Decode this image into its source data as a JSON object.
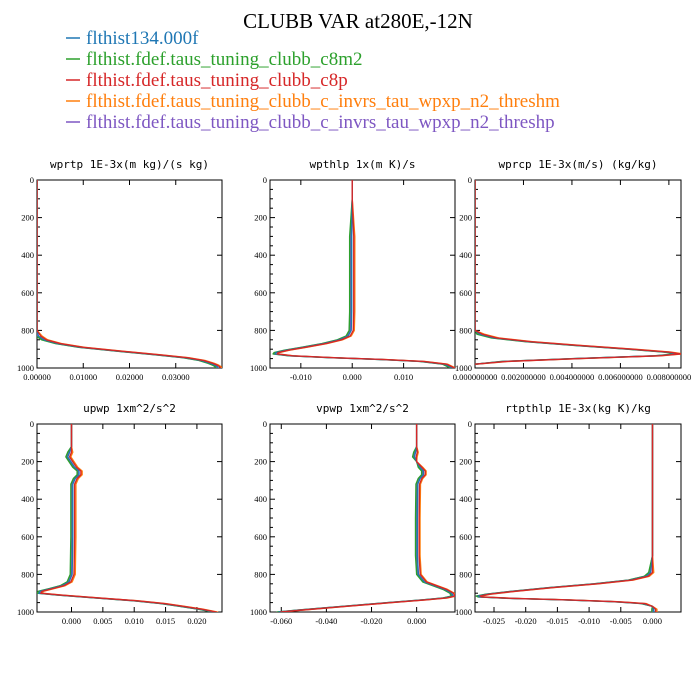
{
  "chart_data": {
    "type": "line",
    "title": "CLUBB VAR at280E,-12N",
    "series_names": [
      "flthist134.000f",
      "flthist.fdef.taus_tuning_clubb_c8m2",
      "flthist.fdef.taus_tuning_clubb_c8p",
      "flthist.fdef.taus_tuning_clubb_c_invrs_tau_wpxp_n2_threshm",
      "flthist.fdef.taus_tuning_clubb_c_invrs_tau_wpxp_n2_threshp"
    ],
    "series_colors": [
      "#1f77b4",
      "#2ca02c",
      "#d62728",
      "#ff7f0e",
      "#7e57c2"
    ],
    "legend_position": "top",
    "panels": [
      {
        "title": "wprtp  1E-3x(m kg)/(s kg)",
        "xlim": [
          0,
          0.04
        ],
        "ylim": [
          0,
          1000
        ],
        "y_inverted": true,
        "xticks": [
          0,
          0.01,
          0.02,
          0.03
        ],
        "xtick_labels": [
          "0.00000",
          "0.01000",
          "0.02000",
          "0.03000"
        ],
        "yticks": [
          0,
          200,
          400,
          600,
          800,
          1000
        ],
        "ytick_labels": [
          "0",
          "200",
          "400",
          "600",
          "800",
          "1000"
        ],
        "profile": {
          "y": [
            0,
            600,
            800,
            830,
            850,
            870,
            890,
            910,
            930,
            945,
            960,
            975,
            985,
            993,
            1000
          ],
          "x": [
            0,
            0,
            0,
            0.0003,
            0.0015,
            0.0045,
            0.0095,
            0.0175,
            0.026,
            0.032,
            0.0355,
            0.0375,
            0.0385,
            0.039,
            0.0392
          ]
        },
        "series_dx": [
          0,
          -0.0005,
          0.0005,
          0.0008,
          -0.0003
        ]
      },
      {
        "title": "wpthlp  1x(m K)/s",
        "xlim": [
          -0.016,
          0.02
        ],
        "ylim": [
          0,
          1000
        ],
        "y_inverted": true,
        "xticks": [
          -0.01,
          0,
          0.01
        ],
        "xtick_labels": [
          "-0.010",
          "0.000",
          "0.010"
        ],
        "yticks": [
          0,
          200,
          400,
          600,
          800,
          1000
        ],
        "ytick_labels": [
          "0",
          "200",
          "400",
          "600",
          "800",
          "1000"
        ],
        "profile": {
          "y": [
            0,
            100,
            300,
            500,
            700,
            800,
            830,
            850,
            870,
            890,
            905,
            918,
            925,
            935,
            945,
            955,
            965,
            980,
            1000
          ],
          "x": [
            0,
            0,
            -0.0001,
            -0.0001,
            -0.0001,
            -0.0002,
            -0.0008,
            -0.0025,
            -0.0055,
            -0.0095,
            -0.0128,
            -0.0148,
            -0.015,
            -0.012,
            -0.004,
            0.006,
            0.0135,
            0.018,
            0.0195
          ]
        },
        "series_dx": [
          0,
          -0.0004,
          0.0004,
          0.0006,
          -0.0002
        ]
      },
      {
        "title": "wprcp  1E-3x(m/s) (kg/kg)",
        "xlim": [
          0,
          0.0085
        ],
        "ylim": [
          0,
          1000
        ],
        "y_inverted": true,
        "xticks": [
          0,
          0.002,
          0.004,
          0.006,
          0.008
        ],
        "xtick_labels": [
          "0.000000000",
          "0.002000000",
          "0.004000000",
          "0.006000000",
          "0.008000000"
        ],
        "yticks": [
          0,
          200,
          400,
          600,
          800,
          1000
        ],
        "ytick_labels": [
          "0",
          "200",
          "400",
          "600",
          "800",
          "1000"
        ],
        "profile": {
          "y": [
            0,
            750,
            800,
            820,
            840,
            860,
            880,
            900,
            915,
            925,
            935,
            950,
            965,
            980
          ],
          "x": [
            0,
            0,
            0,
            0.0002,
            0.0008,
            0.0022,
            0.0042,
            0.0064,
            0.0079,
            0.0084,
            0.0075,
            0.0042,
            0.0012,
            0
          ]
        },
        "series_dx": [
          0,
          -0.00012,
          0.0001,
          0.00018,
          -6e-05
        ]
      },
      {
        "title": "upwp  1xm^2/s^2",
        "xlim": [
          -0.0055,
          0.024
        ],
        "ylim": [
          0,
          1000
        ],
        "y_inverted": true,
        "xticks": [
          0,
          0.005,
          0.01,
          0.015,
          0.02
        ],
        "xtick_labels": [
          "0.000",
          "0.005",
          "0.010",
          "0.015",
          "0.020"
        ],
        "yticks": [
          0,
          200,
          400,
          600,
          800,
          1000
        ],
        "ytick_labels": [
          "0",
          "200",
          "400",
          "600",
          "800",
          "1000"
        ],
        "profile": {
          "y": [
            0,
            120,
            150,
            175,
            200,
            230,
            250,
            270,
            290,
            320,
            400,
            600,
            800,
            840,
            860,
            875,
            890,
            900,
            910,
            925,
            940,
            955,
            970,
            985,
            1000
          ],
          "x": [
            0,
            0,
            -0.0003,
            -0.0006,
            -0.0001,
            0.0005,
            0.0012,
            0.0012,
            0.0006,
            0.0002,
            0.0002,
            0.0002,
            0.0001,
            -0.0004,
            -0.0015,
            -0.0032,
            -0.005,
            -0.0052,
            -0.002,
            0.004,
            0.01,
            0.0145,
            0.0175,
            0.0205,
            0.0228
          ]
        },
        "series_dx": [
          0,
          -0.0003,
          0.0003,
          0.0005,
          -0.0002
        ]
      },
      {
        "title": "vpwp  1xm^2/s^2",
        "xlim": [
          -0.065,
          0.017
        ],
        "ylim": [
          0,
          1000
        ],
        "y_inverted": true,
        "xticks": [
          -0.06,
          -0.04,
          -0.02,
          0
        ],
        "xtick_labels": [
          "-0.060",
          "-0.040",
          "-0.020",
          "0.000"
        ],
        "yticks": [
          0,
          200,
          400,
          600,
          800,
          1000
        ],
        "ytick_labels": [
          "0",
          "200",
          "400",
          "600",
          "800",
          "1000"
        ],
        "profile": {
          "y": [
            0,
            120,
            150,
            175,
            200,
            230,
            250,
            270,
            290,
            320,
            500,
            700,
            800,
            840,
            860,
            880,
            900,
            915,
            925,
            935,
            950,
            970,
            990,
            1000
          ],
          "x": [
            0,
            0,
            -0.0005,
            -0.001,
            0,
            0.0015,
            0.003,
            0.003,
            0.0015,
            0.0005,
            0.0003,
            0.0003,
            0.0008,
            0.0035,
            0.008,
            0.0125,
            0.0155,
            0.0162,
            0.0125,
            0.0035,
            -0.012,
            -0.032,
            -0.052,
            -0.061
          ]
        },
        "series_dx": [
          0,
          -0.0008,
          0.0008,
          0.0012,
          -0.0005
        ]
      },
      {
        "title": "rtpthlp  1E-3x(kg K)/kg",
        "xlim": [
          -0.028,
          0.0045
        ],
        "ylim": [
          0,
          1000
        ],
        "y_inverted": true,
        "xticks": [
          -0.025,
          -0.02,
          -0.015,
          -0.01,
          -0.005,
          0
        ],
        "xtick_labels": [
          "-0.025",
          "-0.020",
          "-0.015",
          "-0.010",
          "-0.005",
          "0.000"
        ],
        "yticks": [
          0,
          200,
          400,
          600,
          800,
          1000
        ],
        "ytick_labels": [
          "0",
          "200",
          "400",
          "600",
          "800",
          "1000"
        ],
        "profile": {
          "y": [
            0,
            400,
            700,
            790,
            810,
            830,
            850,
            870,
            890,
            905,
            915,
            920,
            928,
            935,
            945,
            955,
            970,
            985,
            1000
          ],
          "x": [
            0,
            0,
            0,
            -0.0003,
            -0.001,
            -0.0035,
            -0.009,
            -0.016,
            -0.022,
            -0.026,
            -0.0275,
            -0.0272,
            -0.022,
            -0.014,
            -0.006,
            -0.0015,
            0,
            0.0002,
            0.0002
          ]
        },
        "series_dx": [
          0,
          -0.0003,
          0.0003,
          0.0005,
          -0.0002
        ]
      }
    ]
  }
}
